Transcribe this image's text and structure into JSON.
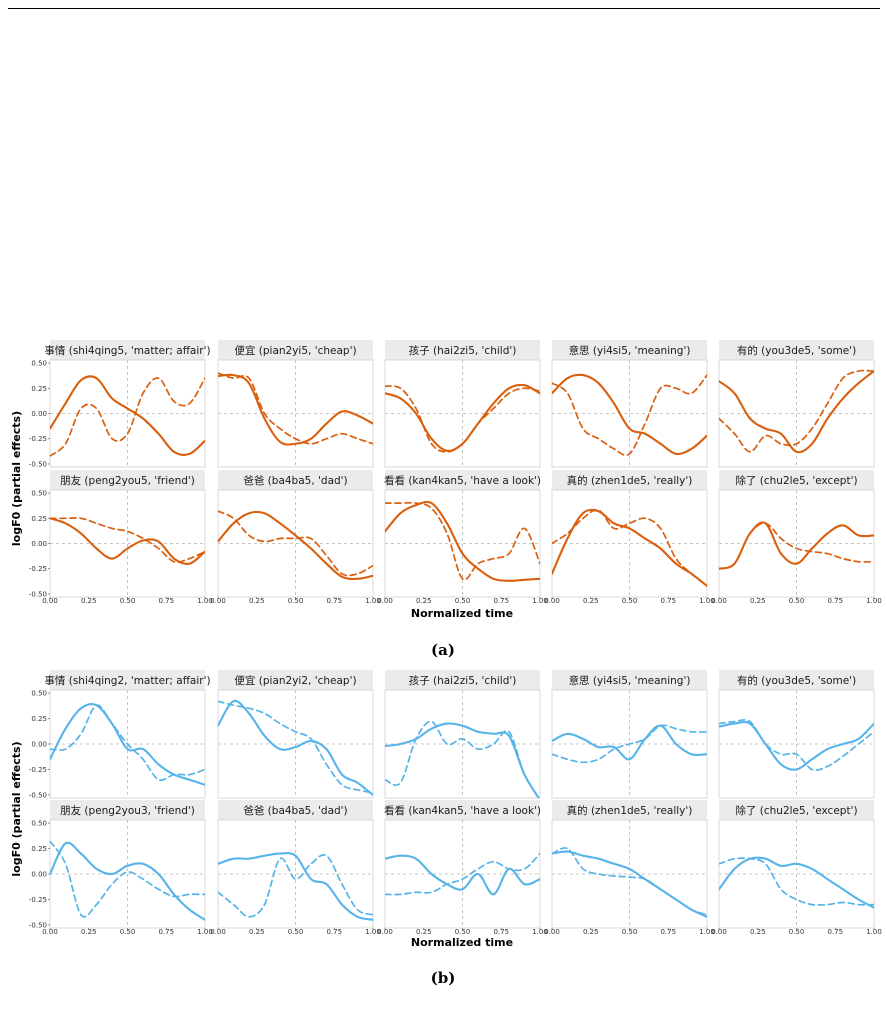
{
  "figure": {
    "caption_a": "(a)",
    "caption_b": "(b)"
  },
  "chart_data": [
    {
      "type": "line",
      "id": "a",
      "color": "#d95f0e",
      "xlabel": "Normalized time",
      "ylabel": "logF0 (partial effects)",
      "xlim": [
        0,
        1
      ],
      "ylim": [
        -0.53,
        0.53
      ],
      "xticks": [
        "0.00",
        "0.25",
        "0.50",
        "0.75",
        "1.00"
      ],
      "yticks": [
        "0.50",
        "0.25",
        "0.00",
        "-0.25",
        "-0.50"
      ],
      "reference_lines": {
        "x": 0.5,
        "y": 0
      },
      "line_styles": [
        "solid",
        "dashed"
      ],
      "panels": [
        {
          "title": "事情 (shi4qing5, 'matter; affair')",
          "x": [
            0,
            0.1,
            0.2,
            0.3,
            0.4,
            0.5,
            0.6,
            0.7,
            0.8,
            0.9,
            1.0
          ],
          "solid": [
            -0.15,
            0.1,
            0.33,
            0.35,
            0.15,
            0.05,
            -0.05,
            -0.2,
            -0.38,
            -0.4,
            -0.27
          ],
          "dashed": [
            -0.42,
            -0.3,
            0.05,
            0.05,
            -0.25,
            -0.2,
            0.2,
            0.35,
            0.12,
            0.1,
            0.35
          ]
        },
        {
          "title": "便宜 (pian2yi5, 'cheap')",
          "x": [
            0,
            0.1,
            0.2,
            0.3,
            0.4,
            0.5,
            0.6,
            0.7,
            0.8,
            0.9,
            1.0
          ],
          "solid": [
            0.37,
            0.38,
            0.3,
            -0.05,
            -0.28,
            -0.3,
            -0.25,
            -0.1,
            0.02,
            -0.02,
            -0.1
          ],
          "dashed": [
            0.4,
            0.35,
            0.35,
            0.0,
            -0.15,
            -0.25,
            -0.3,
            -0.25,
            -0.2,
            -0.25,
            -0.3
          ]
        },
        {
          "title": "孩子 (hai2zi5, 'child')",
          "x": [
            0,
            0.1,
            0.2,
            0.3,
            0.4,
            0.5,
            0.6,
            0.7,
            0.8,
            0.9,
            1.0
          ],
          "solid": [
            0.2,
            0.15,
            0.0,
            -0.25,
            -0.37,
            -0.3,
            -0.1,
            0.1,
            0.25,
            0.28,
            0.2
          ],
          "dashed": [
            0.27,
            0.25,
            0.05,
            -0.3,
            -0.38,
            -0.3,
            -0.1,
            0.05,
            0.2,
            0.25,
            0.22
          ]
        },
        {
          "title": "意思 (yi4si5, 'meaning')",
          "x": [
            0,
            0.1,
            0.2,
            0.3,
            0.4,
            0.5,
            0.6,
            0.7,
            0.8,
            0.9,
            1.0
          ],
          "solid": [
            0.2,
            0.35,
            0.38,
            0.3,
            0.1,
            -0.15,
            -0.2,
            -0.3,
            -0.4,
            -0.35,
            -0.22
          ],
          "dashed": [
            0.3,
            0.2,
            -0.15,
            -0.25,
            -0.35,
            -0.4,
            -0.1,
            0.25,
            0.25,
            0.2,
            0.38
          ]
        },
        {
          "title": "有的 (you3de5, 'some')",
          "x": [
            0,
            0.1,
            0.2,
            0.3,
            0.4,
            0.5,
            0.6,
            0.7,
            0.8,
            0.9,
            1.0
          ],
          "solid": [
            0.32,
            0.2,
            -0.05,
            -0.15,
            -0.2,
            -0.38,
            -0.3,
            -0.05,
            0.15,
            0.3,
            0.42
          ],
          "dashed": [
            -0.05,
            -0.2,
            -0.38,
            -0.22,
            -0.3,
            -0.3,
            -0.15,
            0.1,
            0.35,
            0.42,
            0.42
          ]
        },
        {
          "title": "朋友 (peng2you5, 'friend')",
          "x": [
            0,
            0.1,
            0.2,
            0.3,
            0.4,
            0.5,
            0.6,
            0.7,
            0.8,
            0.9,
            1.0
          ],
          "solid": [
            0.25,
            0.2,
            0.1,
            -0.05,
            -0.15,
            -0.05,
            0.03,
            0.02,
            -0.15,
            -0.2,
            -0.08
          ],
          "dashed": [
            0.25,
            0.25,
            0.25,
            0.2,
            0.15,
            0.12,
            0.05,
            -0.05,
            -0.18,
            -0.15,
            -0.08
          ]
        },
        {
          "title": "爸爸 (ba4ba5, 'dad')",
          "x": [
            0,
            0.1,
            0.2,
            0.3,
            0.4,
            0.5,
            0.6,
            0.7,
            0.8,
            0.9,
            1.0
          ],
          "solid": [
            0.02,
            0.2,
            0.3,
            0.3,
            0.2,
            0.08,
            -0.05,
            -0.2,
            -0.33,
            -0.35,
            -0.32
          ],
          "dashed": [
            0.32,
            0.25,
            0.08,
            0.02,
            0.05,
            0.05,
            0.05,
            -0.12,
            -0.3,
            -0.3,
            -0.22
          ]
        },
        {
          "title": "看看 (kan4kan5, 'have a look')",
          "x": [
            0,
            0.1,
            0.2,
            0.3,
            0.4,
            0.5,
            0.6,
            0.7,
            0.8,
            0.9,
            1.0
          ],
          "solid": [
            0.12,
            0.3,
            0.38,
            0.4,
            0.2,
            -0.1,
            -0.25,
            -0.35,
            -0.37,
            -0.36,
            -0.35
          ],
          "dashed": [
            0.4,
            0.4,
            0.4,
            0.35,
            0.1,
            -0.35,
            -0.2,
            -0.15,
            -0.1,
            0.15,
            -0.2
          ]
        },
        {
          "title": "真的 (zhen1de5, 'really')",
          "x": [
            0,
            0.1,
            0.2,
            0.3,
            0.4,
            0.5,
            0.6,
            0.7,
            0.8,
            0.9,
            1.0
          ],
          "solid": [
            -0.3,
            0.05,
            0.3,
            0.32,
            0.2,
            0.15,
            0.05,
            -0.05,
            -0.2,
            -0.3,
            -0.42
          ],
          "dashed": [
            0.0,
            0.1,
            0.25,
            0.33,
            0.15,
            0.2,
            0.25,
            0.15,
            -0.15,
            -0.3,
            -0.42
          ]
        },
        {
          "title": "除了 (chu2le5, 'except')",
          "x": [
            0,
            0.1,
            0.2,
            0.3,
            0.4,
            0.5,
            0.6,
            0.7,
            0.8,
            0.9,
            1.0
          ],
          "solid": [
            -0.25,
            -0.2,
            0.1,
            0.2,
            -0.1,
            -0.2,
            -0.05,
            0.1,
            0.18,
            0.08,
            0.08
          ],
          "dashed": [
            -0.25,
            -0.2,
            0.1,
            0.2,
            0.05,
            -0.05,
            -0.08,
            -0.1,
            -0.15,
            -0.18,
            -0.18
          ]
        }
      ]
    },
    {
      "type": "line",
      "id": "b",
      "color": "#56b4e9",
      "xlabel": "Normalized time",
      "ylabel": "logF0 (partial effects)",
      "xlim": [
        0,
        1
      ],
      "ylim": [
        -0.53,
        0.53
      ],
      "xticks": [
        "0.00",
        "0.25",
        "0.50",
        "0.75",
        "1.00"
      ],
      "yticks": [
        "0.50",
        "0.25",
        "0.00",
        "-0.25",
        "-0.50"
      ],
      "reference_lines": {
        "x": 0.5,
        "y": 0
      },
      "line_styles": [
        "solid",
        "dashed"
      ],
      "panels": [
        {
          "title": "事情 (shi4qing2, 'matter; affair')",
          "x": [
            0,
            0.1,
            0.2,
            0.3,
            0.4,
            0.5,
            0.6,
            0.7,
            0.8,
            0.9,
            1.0
          ],
          "solid": [
            -0.15,
            0.15,
            0.35,
            0.38,
            0.2,
            -0.05,
            -0.05,
            -0.2,
            -0.3,
            -0.35,
            -0.4
          ],
          "dashed": [
            -0.05,
            -0.05,
            0.1,
            0.38,
            0.2,
            0.0,
            -0.15,
            -0.35,
            -0.3,
            -0.3,
            -0.25
          ]
        },
        {
          "title": "便宜 (pian2yi2, 'cheap')",
          "x": [
            0,
            0.1,
            0.2,
            0.3,
            0.4,
            0.5,
            0.6,
            0.7,
            0.8,
            0.9,
            1.0
          ],
          "solid": [
            0.18,
            0.42,
            0.3,
            0.08,
            -0.05,
            -0.03,
            0.03,
            -0.05,
            -0.3,
            -0.38,
            -0.5
          ],
          "dashed": [
            0.42,
            0.38,
            0.35,
            0.3,
            0.2,
            0.12,
            0.05,
            -0.2,
            -0.4,
            -0.45,
            -0.48
          ]
        },
        {
          "title": "孩子 (hai2zi5, 'child')",
          "x": [
            0,
            0.1,
            0.2,
            0.3,
            0.4,
            0.5,
            0.6,
            0.7,
            0.8,
            0.9,
            1.0
          ],
          "solid": [
            -0.02,
            0.0,
            0.05,
            0.15,
            0.2,
            0.18,
            0.12,
            0.1,
            0.08,
            -0.3,
            -0.55
          ],
          "dashed": [
            -0.35,
            -0.38,
            0.05,
            0.22,
            0.0,
            0.05,
            -0.05,
            0.0,
            0.12,
            -0.3,
            -0.55
          ]
        },
        {
          "title": "意思 (yi4si5, 'meaning')",
          "x": [
            0,
            0.1,
            0.2,
            0.3,
            0.4,
            0.5,
            0.6,
            0.7,
            0.8,
            0.9,
            1.0
          ],
          "solid": [
            0.03,
            0.1,
            0.05,
            -0.03,
            -0.03,
            -0.15,
            0.05,
            0.18,
            0.0,
            -0.1,
            -0.1
          ],
          "dashed": [
            -0.1,
            -0.15,
            -0.18,
            -0.15,
            -0.05,
            0.0,
            0.05,
            0.18,
            0.15,
            0.12,
            0.12
          ]
        },
        {
          "title": "有的 (you3de5, 'some')",
          "x": [
            0,
            0.1,
            0.2,
            0.3,
            0.4,
            0.5,
            0.6,
            0.7,
            0.8,
            0.9,
            1.0
          ],
          "solid": [
            0.17,
            0.2,
            0.2,
            0.0,
            -0.2,
            -0.25,
            -0.15,
            -0.05,
            0.0,
            0.05,
            0.2
          ],
          "dashed": [
            0.2,
            0.22,
            0.22,
            0.0,
            -0.1,
            -0.1,
            -0.25,
            -0.22,
            -0.12,
            0.0,
            0.12
          ]
        },
        {
          "title": "朋友 (peng2you3, 'friend')",
          "x": [
            0,
            0.1,
            0.2,
            0.3,
            0.4,
            0.5,
            0.6,
            0.7,
            0.8,
            0.9,
            1.0
          ],
          "solid": [
            0.0,
            0.3,
            0.2,
            0.05,
            0.0,
            0.08,
            0.1,
            0.0,
            -0.2,
            -0.35,
            -0.45
          ],
          "dashed": [
            0.32,
            0.1,
            -0.4,
            -0.3,
            -0.1,
            0.02,
            -0.05,
            -0.15,
            -0.22,
            -0.2,
            -0.2
          ]
        },
        {
          "title": "爸爸 (ba4ba5, 'dad')",
          "x": [
            0,
            0.1,
            0.2,
            0.3,
            0.4,
            0.5,
            0.6,
            0.7,
            0.8,
            0.9,
            1.0
          ],
          "solid": [
            0.1,
            0.15,
            0.15,
            0.18,
            0.2,
            0.18,
            -0.05,
            -0.1,
            -0.3,
            -0.42,
            -0.45
          ],
          "dashed": [
            -0.18,
            -0.3,
            -0.42,
            -0.3,
            0.15,
            -0.05,
            0.1,
            0.18,
            -0.1,
            -0.35,
            -0.4
          ]
        },
        {
          "title": "看看 (kan4kan5, 'have a look')",
          "x": [
            0,
            0.1,
            0.2,
            0.3,
            0.4,
            0.5,
            0.6,
            0.7,
            0.8,
            0.9,
            1.0
          ],
          "solid": [
            0.15,
            0.18,
            0.15,
            0.0,
            -0.1,
            -0.15,
            0.0,
            -0.2,
            0.05,
            -0.1,
            -0.05
          ],
          "dashed": [
            -0.2,
            -0.2,
            -0.18,
            -0.18,
            -0.1,
            -0.05,
            0.05,
            0.12,
            0.05,
            0.05,
            0.2
          ]
        },
        {
          "title": "真的 (zhen1de5, 'really')",
          "x": [
            0,
            0.1,
            0.2,
            0.3,
            0.4,
            0.5,
            0.6,
            0.7,
            0.8,
            0.9,
            1.0
          ],
          "solid": [
            0.2,
            0.22,
            0.18,
            0.15,
            0.1,
            0.05,
            -0.05,
            -0.15,
            -0.25,
            -0.35,
            -0.42
          ],
          "dashed": [
            0.2,
            0.25,
            0.05,
            0.0,
            -0.02,
            -0.03,
            -0.05,
            -0.15,
            -0.25,
            -0.35,
            -0.4
          ]
        },
        {
          "title": "除了 (chu2le5, 'except')",
          "x": [
            0,
            0.1,
            0.2,
            0.3,
            0.4,
            0.5,
            0.6,
            0.7,
            0.8,
            0.9,
            1.0
          ],
          "solid": [
            -0.15,
            0.05,
            0.15,
            0.15,
            0.08,
            0.1,
            0.05,
            -0.05,
            -0.15,
            -0.25,
            -0.33
          ],
          "dashed": [
            0.1,
            0.15,
            0.15,
            0.1,
            -0.15,
            -0.25,
            -0.3,
            -0.3,
            -0.28,
            -0.3,
            -0.3
          ]
        }
      ]
    }
  ]
}
